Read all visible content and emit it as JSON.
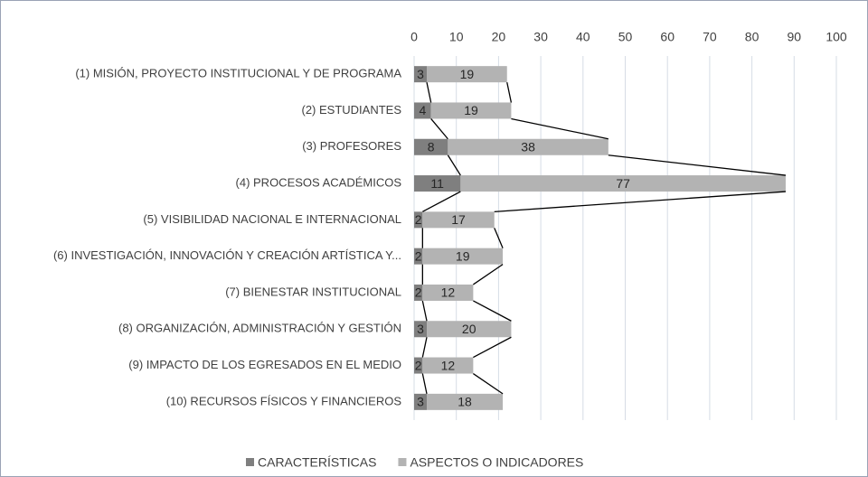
{
  "chart_data": {
    "type": "stacked-bar-horizontal",
    "categories": [
      "(1) MISIÓN, PROYECTO INSTITUCIONAL Y DE PROGRAMA",
      "(2) ESTUDIANTES",
      "(3) PROFESORES",
      "(4) PROCESOS ACADÉMICOS",
      "(5) VISIBILIDAD NACIONAL E INTERNACIONAL",
      "(6) INVESTIGACIÓN, INNOVACIÓN Y CREACIÓN ARTÍSTICA Y...",
      "(7) BIENESTAR INSTITUCIONAL",
      "(8) ORGANIZACIÓN, ADMINISTRACIÓN Y GESTIÓN",
      "(9) IMPACTO DE LOS EGRESADOS EN EL MEDIO",
      "(10) RECURSOS FÍSICOS Y FINANCIEROS"
    ],
    "series": [
      {
        "name": "CARACTERÍSTICAS",
        "color": "#7f7f7f",
        "values": [
          3,
          4,
          8,
          11,
          2,
          2,
          2,
          3,
          2,
          3
        ]
      },
      {
        "name": "ASPECTOS O INDICADORES",
        "color": "#b3b3b3",
        "values": [
          19,
          19,
          38,
          77,
          17,
          19,
          12,
          20,
          12,
          18
        ]
      }
    ],
    "xlim": [
      0,
      100
    ],
    "xticks": [
      0,
      10,
      20,
      30,
      40,
      50,
      60,
      70,
      80,
      90,
      100
    ],
    "x_axis_position": "top",
    "grid": true,
    "series_lines": true,
    "legend": "bottom"
  }
}
